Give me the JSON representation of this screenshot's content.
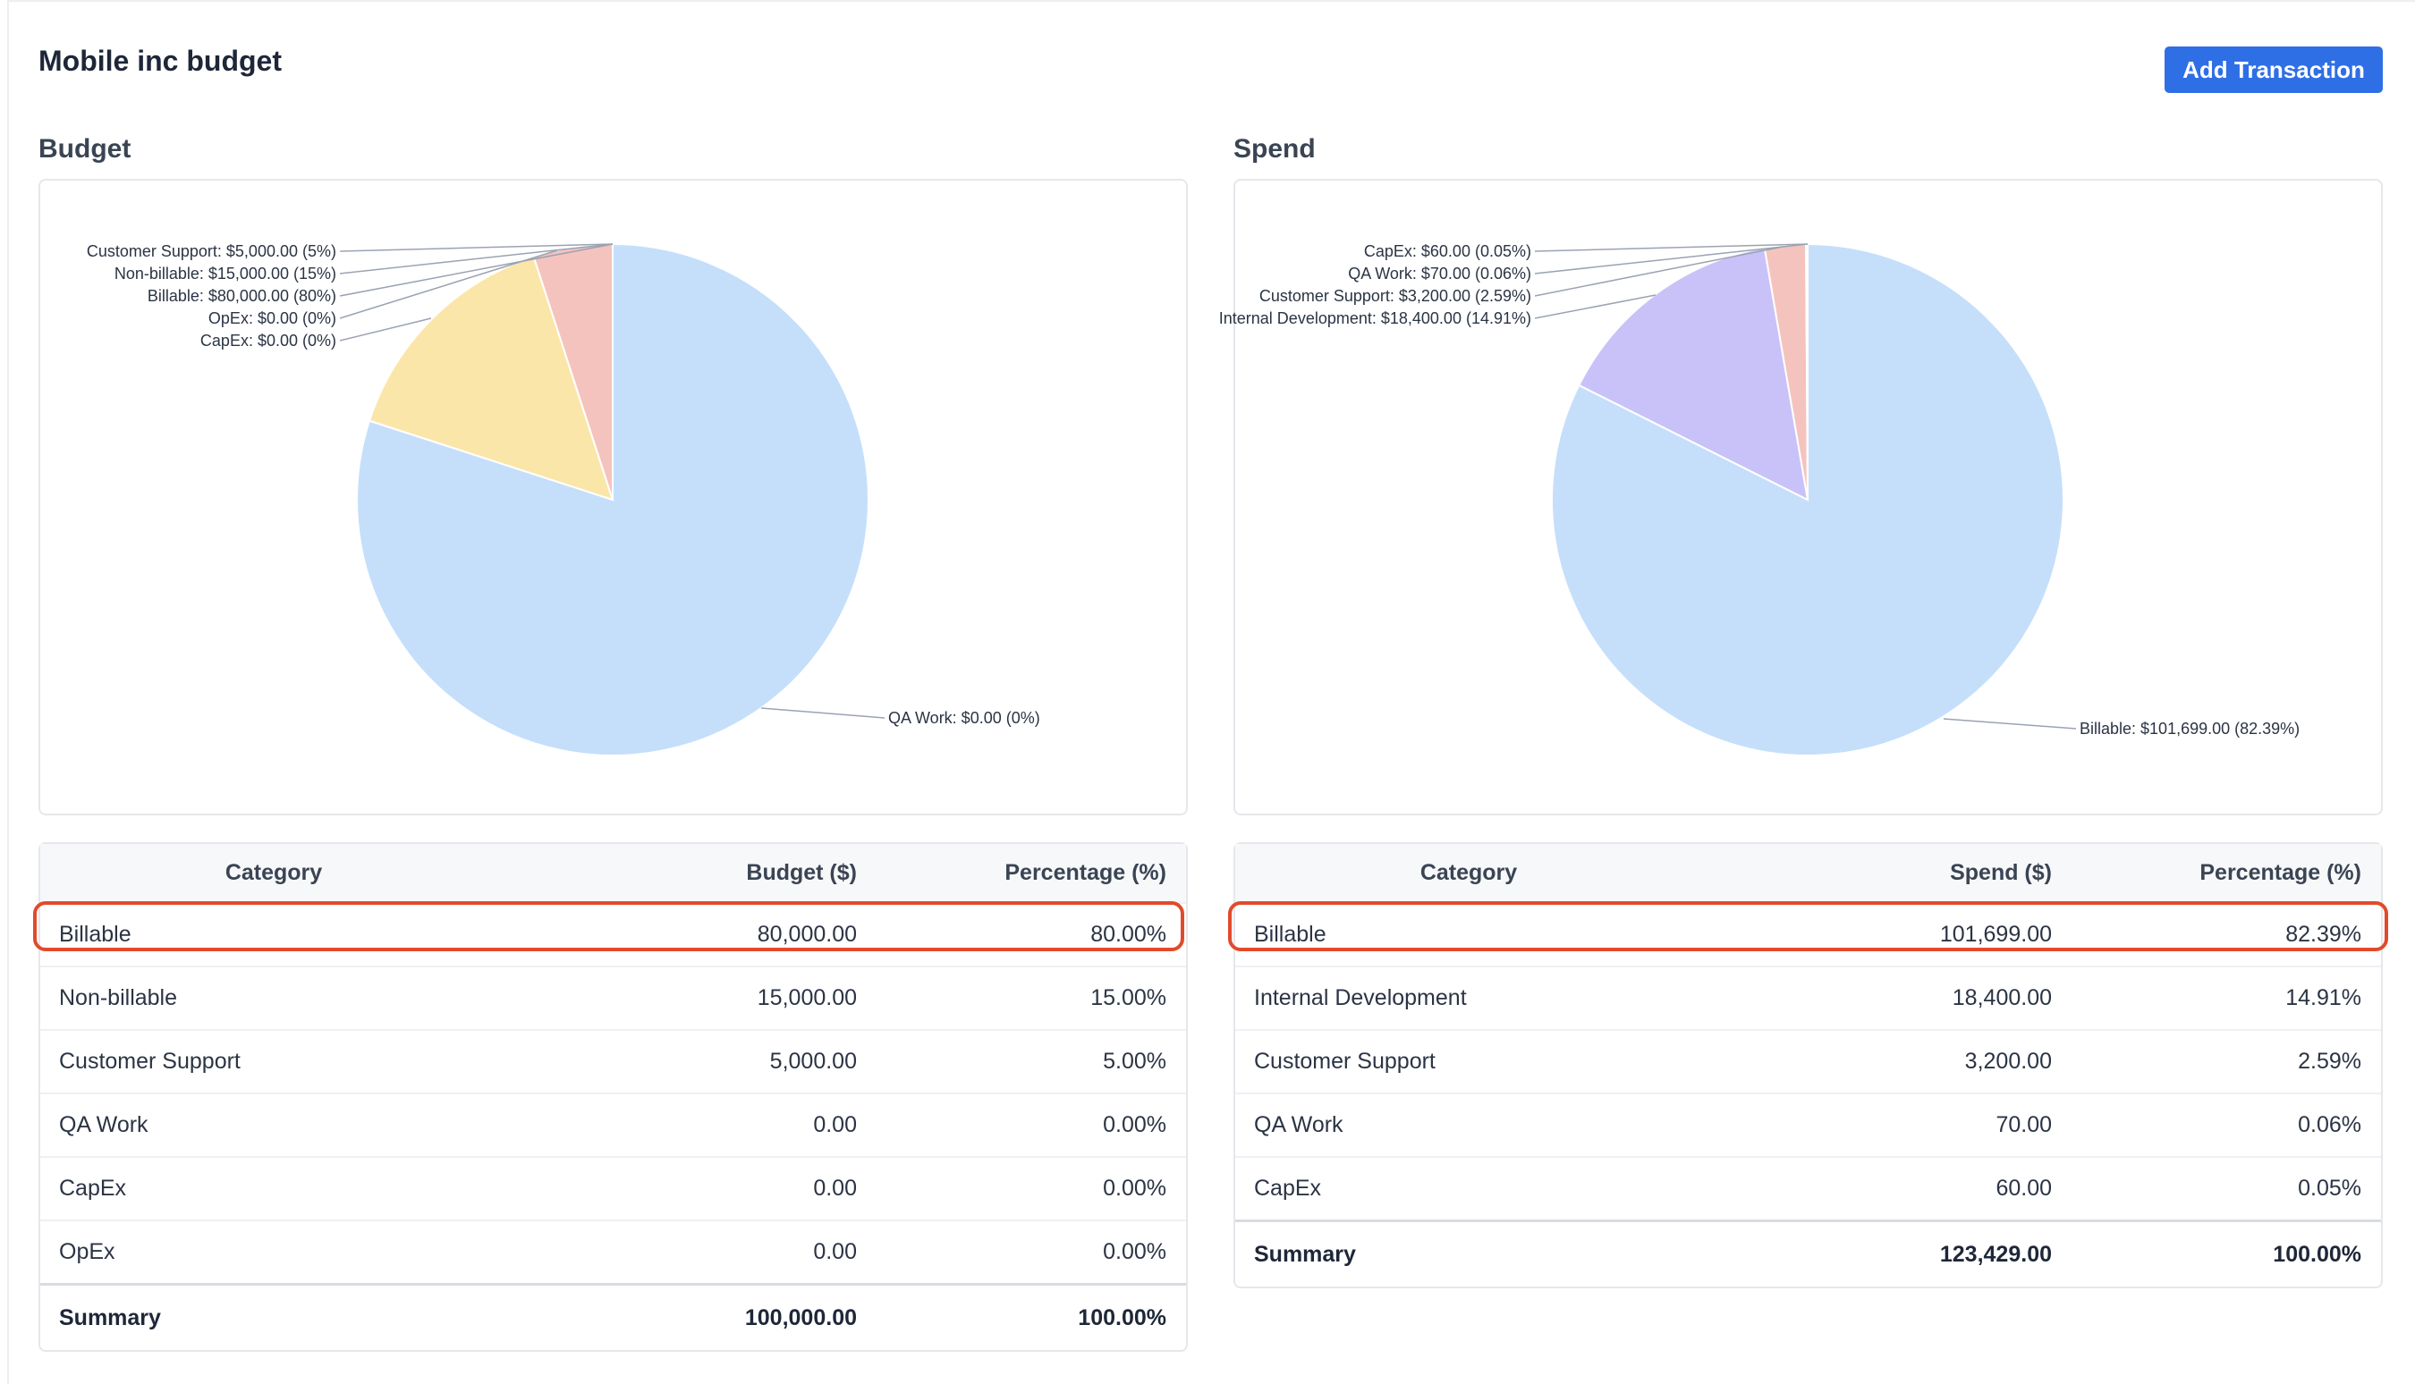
{
  "page": {
    "title": "Mobile inc budget",
    "add_button": "Add Transaction"
  },
  "budget": {
    "section_title": "Budget",
    "columns": [
      "Category",
      "Budget ($)",
      "Percentage (%)"
    ],
    "rows": [
      {
        "category": "Billable",
        "amount": "80,000.00",
        "percent": "80.00%"
      },
      {
        "category": "Non-billable",
        "amount": "15,000.00",
        "percent": "15.00%"
      },
      {
        "category": "Customer Support",
        "amount": "5,000.00",
        "percent": "5.00%"
      },
      {
        "category": "QA Work",
        "amount": "0.00",
        "percent": "0.00%"
      },
      {
        "category": "CapEx",
        "amount": "0.00",
        "percent": "0.00%"
      },
      {
        "category": "OpEx",
        "amount": "0.00",
        "percent": "0.00%"
      }
    ],
    "summary": {
      "label": "Summary",
      "amount": "100,000.00",
      "percent": "100.00%"
    },
    "pie_labels": [
      "QA Work: $0.00 (0%)",
      "CapEx: $0.00 (0%)",
      "OpEx: $0.00 (0%)",
      "Customer Support: $5,000.00 (5%)",
      "Non-billable: $15,000.00 (15%)",
      "Billable: $80,000.00 (80%)"
    ]
  },
  "spend": {
    "section_title": "Spend",
    "columns": [
      "Category",
      "Spend ($)",
      "Percentage (%)"
    ],
    "rows": [
      {
        "category": "Billable",
        "amount": "101,699.00",
        "percent": "82.39%"
      },
      {
        "category": "Internal Development",
        "amount": "18,400.00",
        "percent": "14.91%"
      },
      {
        "category": "Customer Support",
        "amount": "3,200.00",
        "percent": "2.59%"
      },
      {
        "category": "QA Work",
        "amount": "70.00",
        "percent": "0.06%"
      },
      {
        "category": "CapEx",
        "amount": "60.00",
        "percent": "0.05%"
      }
    ],
    "summary": {
      "label": "Summary",
      "amount": "123,429.00",
      "percent": "100.00%"
    },
    "pie_labels": [
      "CapEx: $60.00 (0.05%)",
      "QA Work: $70.00 (0.06%)",
      "Customer Support: $3,200.00 (2.59%)",
      "Internal Development: $18,400.00 (14.91%)",
      "Billable: $101,699.00 (82.39%)"
    ]
  },
  "colors": {
    "accent": "#2f6fe6",
    "highlight": "#e24a2c",
    "billable": "#c5dffb",
    "non_billable": "#fbe6a9",
    "customer_support": "#f5c3bd",
    "internal_development": "#c9c2f8"
  },
  "chart_data": [
    {
      "type": "pie",
      "title": "Budget",
      "categories": [
        "Billable",
        "Non-billable",
        "Customer Support",
        "QA Work",
        "CapEx",
        "OpEx"
      ],
      "values": [
        80000,
        15000,
        5000,
        0,
        0,
        0
      ]
    },
    {
      "type": "pie",
      "title": "Spend",
      "categories": [
        "Billable",
        "Internal Development",
        "Customer Support",
        "QA Work",
        "CapEx"
      ],
      "values": [
        101699,
        18400,
        3200,
        70,
        60
      ]
    }
  ]
}
